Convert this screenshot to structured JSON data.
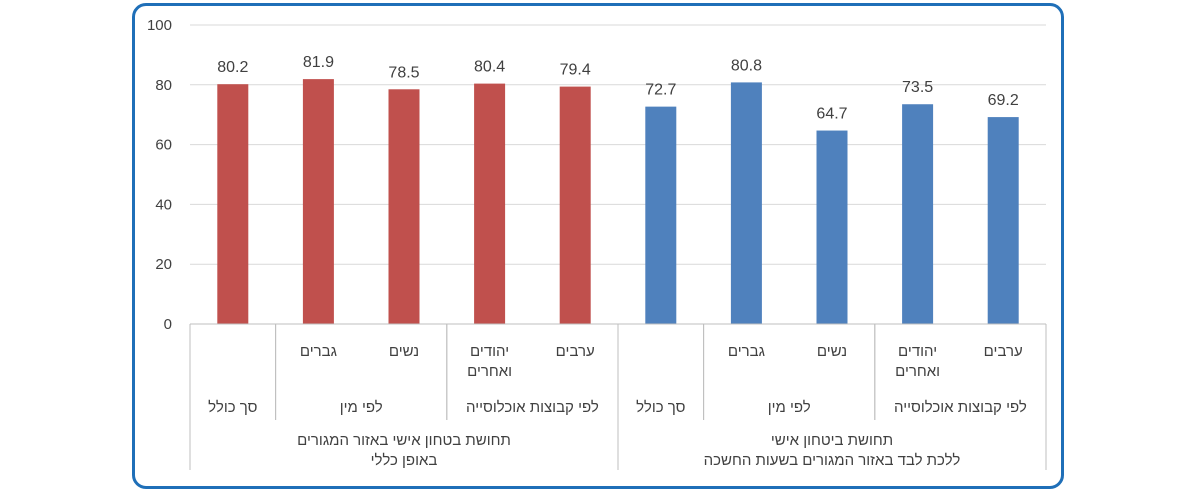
{
  "chart_data": {
    "type": "bar",
    "ylim": [
      0,
      100
    ],
    "yticks": [
      0,
      20,
      40,
      60,
      80,
      100
    ],
    "grid": true,
    "legend": "none",
    "colors": {
      "group1": "#c0504d",
      "group2": "#4f81bd",
      "grid": "#d9d9d9",
      "axis": "#bfbfbf",
      "text": "#404040",
      "frame": "#1f6fb8"
    },
    "groups": [
      {
        "label_lines": [
          "תחושת בטחון אישי באזור המגורים",
          "באופן כללי"
        ],
        "color": "#c0504d",
        "subgroups": [
          {
            "label": "סך כולל",
            "bars": [
              {
                "label_lines": [
                  ""
                ],
                "value": 80.2,
                "value_label": "80.2"
              }
            ]
          },
          {
            "label": "לפי מין",
            "bars": [
              {
                "label_lines": [
                  "גברים"
                ],
                "value": 81.9,
                "value_label": "81.9"
              },
              {
                "label_lines": [
                  "נשים"
                ],
                "value": 78.5,
                "value_label": "78.5"
              }
            ]
          },
          {
            "label": "לפי קבוצות אוכלוסייה",
            "bars": [
              {
                "label_lines": [
                  "יהודים",
                  "ואחרים"
                ],
                "value": 80.4,
                "value_label": "80.4"
              },
              {
                "label_lines": [
                  "ערבים"
                ],
                "value": 79.4,
                "value_label": "79.4"
              }
            ]
          }
        ]
      },
      {
        "label_lines": [
          "תחושת ביטחון אישי",
          "ללכת לבד באזור המגורים בשעות החשכה"
        ],
        "color": "#4f81bd",
        "subgroups": [
          {
            "label": "סך כולל",
            "bars": [
              {
                "label_lines": [
                  ""
                ],
                "value": 72.7,
                "value_label": "72.7"
              }
            ]
          },
          {
            "label": "לפי מין",
            "bars": [
              {
                "label_lines": [
                  "גברים"
                ],
                "value": 80.8,
                "value_label": "80.8"
              },
              {
                "label_lines": [
                  "נשים"
                ],
                "value": 64.7,
                "value_label": "64.7"
              }
            ]
          },
          {
            "label": "לפי קבוצות אוכלוסייה",
            "bars": [
              {
                "label_lines": [
                  "יהודים",
                  "ואחרים"
                ],
                "value": 73.5,
                "value_label": "73.5"
              },
              {
                "label_lines": [
                  "ערבים"
                ],
                "value": 69.2,
                "value_label": "69.2"
              }
            ]
          }
        ]
      }
    ]
  }
}
